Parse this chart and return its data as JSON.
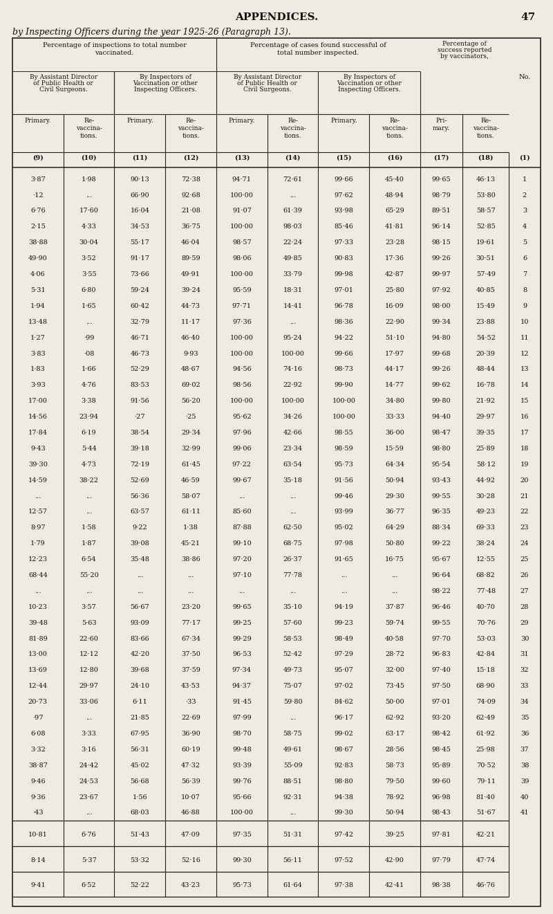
{
  "page_header": "APPENDICES.",
  "page_number": "47",
  "table_title": "by Inspecting Officers during the year 1925-26 (Paragraph 13).",
  "rows": [
    [
      "3·87",
      "1·98",
      "90·13",
      "72·38",
      "94·71",
      "72·61",
      "99·66",
      "45·40",
      "99·65",
      "46·13",
      "1"
    ],
    [
      "·12",
      "...",
      "66·90",
      "92·68",
      "100·00",
      "...",
      "97·62",
      "48·94",
      "98·79",
      "53·80",
      "2"
    ],
    [
      "6·76",
      "17·60",
      "16·04",
      "21·08",
      "91·07",
      "61·39",
      "93·98",
      "65·29",
      "89·51",
      "58·57",
      "3"
    ],
    [
      "2·15",
      "4·33",
      "34·53",
      "36·75",
      "100·00",
      "98·03",
      "85·46",
      "41·81",
      "96·14",
      "52·85",
      "4"
    ],
    [
      "38·88",
      "30·04",
      "55·17",
      "46·04",
      "98·57",
      "22·24",
      "97·33",
      "23·28",
      "98·15",
      "19·61",
      "5"
    ],
    [
      "49·90",
      "3·52",
      "91·17",
      "89·59",
      "98·06",
      "49·85",
      "90·83",
      "17·36",
      "99·26",
      "30·51",
      "6"
    ],
    [
      "4·06",
      "3·55",
      "73·66",
      "49·91",
      "100·00",
      "33·79",
      "99·98",
      "42·87",
      "99·97",
      "57·49",
      "7"
    ],
    [
      "5·31",
      "6·80",
      "59·24",
      "39·24",
      "95·59",
      "18·31",
      "97·01",
      "25·80",
      "97·92",
      "40·85",
      "8"
    ],
    [
      "1·94",
      "1·65",
      "60·42",
      "44·73",
      "97·71",
      "14·41",
      "96·78",
      "16·09",
      "98·00",
      "15·49",
      "9"
    ],
    [
      "13·48",
      "...",
      "32·79",
      "11·17",
      "97·36",
      "...",
      "98·36",
      "22·90",
      "99·34",
      "23·88",
      "10"
    ],
    [
      "1·27",
      "·99",
      "46·71",
      "46·40",
      "100·00",
      "95·24",
      "94·22",
      "51·10",
      "94·80",
      "54·52",
      "11"
    ],
    [
      "3·83",
      "·08",
      "46·73",
      "9·93",
      "100·00",
      "100·00",
      "99·66",
      "17·97",
      "99·68",
      "20·39",
      "12"
    ],
    [
      "1·83",
      "1·66",
      "52·29",
      "48·67",
      "94·56",
      "74·16",
      "98·73",
      "44·17",
      "99·26",
      "48·44",
      "13"
    ],
    [
      "3·93",
      "4·76",
      "83·53",
      "69·02",
      "98·56",
      "22·92",
      "99·90",
      "14·77",
      "99·62",
      "16·78",
      "14"
    ],
    [
      "17·00",
      "3·38",
      "91·56",
      "56·20",
      "100·00",
      "100·00",
      "100·00",
      "34·80",
      "99·80",
      "21·92",
      "15"
    ],
    [
      "14·56",
      "23·94",
      "·27",
      "·25",
      "95·62",
      "34·26",
      "100·00",
      "33·33",
      "94·40",
      "29·97",
      "16"
    ],
    [
      "17·84",
      "6·19",
      "38·54",
      "29·34",
      "97·96",
      "42·66",
      "98·55",
      "36·00",
      "98·47",
      "39·35",
      "17"
    ],
    [
      "9·43",
      "5·44",
      "39·18",
      "32·99",
      "99·06",
      "23·34",
      "98·59",
      "15·59",
      "98·80",
      "25·89",
      "18"
    ],
    [
      "39·30",
      "4·73",
      "72·19",
      "61·45",
      "97·22",
      "63·54",
      "95·73",
      "64·34",
      "95·54",
      "58·12",
      "19"
    ],
    [
      "14·59",
      "38·22",
      "52·69",
      "46·59",
      "99·67",
      "35·18",
      "91·56",
      "50·94",
      "93·43",
      "44·92",
      "20"
    ],
    [
      "...",
      "...",
      "56·36",
      "58·07",
      "...",
      "...",
      "99·46",
      "29·30",
      "99·55",
      "30·28",
      "21"
    ],
    [
      "12·57",
      "...",
      "63·57",
      "61·11",
      "85·60",
      "...",
      "93·99",
      "36·77",
      "96·35",
      "49·23",
      "22"
    ],
    [
      "8·97",
      "1·58",
      "9·22",
      "1·38",
      "87·88",
      "62·50",
      "95·02",
      "64·29",
      "88·34",
      "69·33",
      "23"
    ],
    [
      "1·79",
      "1·87",
      "39·08",
      "45·21",
      "99·10",
      "68·75",
      "97·98",
      "50·80",
      "99·22",
      "38·24",
      "24"
    ],
    [
      "12·23",
      "6·54",
      "35·48",
      "38·86",
      "97·20",
      "26·37",
      "91·65",
      "16·75",
      "95·67",
      "12·55",
      "25"
    ],
    [
      "68·44",
      "55·20",
      "...",
      "...",
      "97·10",
      "77·78",
      "...",
      "...",
      "96·64",
      "68·82",
      "26"
    ],
    [
      "...",
      "...",
      "...",
      "...",
      "...",
      "...",
      "...",
      "...",
      "98·22",
      "77·48",
      "27"
    ],
    [
      "10·23",
      "3·57",
      "56·67",
      "23·20",
      "99·65",
      "35·10",
      "94·19",
      "37·87",
      "96·46",
      "40·70",
      "28"
    ],
    [
      "39·48",
      "5·63",
      "93·09",
      "77·17",
      "99·25",
      "57·60",
      "99·23",
      "59·74",
      "99·55",
      "70·76",
      "29"
    ],
    [
      "81·89",
      "22·60",
      "83·66",
      "67·34",
      "99·29",
      "58·53",
      "98·49",
      "40·58",
      "97·70",
      "53·03",
      "30"
    ],
    [
      "13·00",
      "12·12",
      "42·20",
      "37·50",
      "96·53",
      "52·42",
      "97·29",
      "28·72",
      "96·83",
      "42·84",
      "31"
    ],
    [
      "13·69",
      "12·80",
      "39·68",
      "37·59",
      "97·34",
      "49·73",
      "95·07",
      "32·00",
      "97·40",
      "15·18",
      "32"
    ],
    [
      "12·44",
      "29·97",
      "24·10",
      "43·53",
      "94·37",
      "75·07",
      "97·02",
      "73·45",
      "97·50",
      "68·90",
      "33"
    ],
    [
      "20·73",
      "33·06",
      "6·11",
      "·33",
      "91·45",
      "59·80",
      "84·62",
      "50·00",
      "97·01",
      "74·09",
      "34"
    ],
    [
      "·97",
      "...",
      "21·85",
      "22·69",
      "97·99",
      "...",
      "96·17",
      "62·92",
      "93·20",
      "62·49",
      "35"
    ],
    [
      "6·08",
      "3·33",
      "67·95",
      "36·90",
      "98·70",
      "58·75",
      "99·02",
      "63·17",
      "98·42",
      "61·92",
      "36"
    ],
    [
      "3·32",
      "3·16",
      "56·31",
      "60·19",
      "99·48",
      "49·61",
      "98·67",
      "28·56",
      "98·45",
      "25·98",
      "37"
    ],
    [
      "38·87",
      "24·42",
      "45·02",
      "47·32",
      "93·39",
      "55·09",
      "92·83",
      "58·73",
      "95·89",
      "70·52",
      "38"
    ],
    [
      "9·46",
      "24·53",
      "56·68",
      "56·39",
      "99·76",
      "88·51",
      "98·80",
      "79·50",
      "99·60",
      "79·11",
      "39"
    ],
    [
      "9·36",
      "23·67",
      "1·56",
      "10·07",
      "95·66",
      "92·31",
      "94·38",
      "78·92",
      "96·98",
      "81·40",
      "40"
    ],
    [
      "·43",
      "...",
      "68·03",
      "46·88",
      "100·00",
      "...",
      "99·30",
      "50·94",
      "98·43",
      "51·67",
      "41"
    ]
  ],
  "summary_rows": [
    [
      "10·81",
      "6·76",
      "51·43",
      "47·09",
      "97·35",
      "51·31",
      "97·42",
      "39·25",
      "97·81",
      "42·21"
    ],
    [
      "8·14",
      "5·37",
      "53·32",
      "52·16",
      "99·30",
      "56·11",
      "97·52",
      "42·90",
      "97·79",
      "47·74"
    ],
    [
      "9·41",
      "6·52",
      "52·22",
      "43·23",
      "95·73",
      "61·64",
      "97·38",
      "42·41",
      "98·38",
      "46·76"
    ]
  ],
  "bg_color": "#f0ebe0",
  "text_color": "#111111",
  "line_color": "#222222"
}
